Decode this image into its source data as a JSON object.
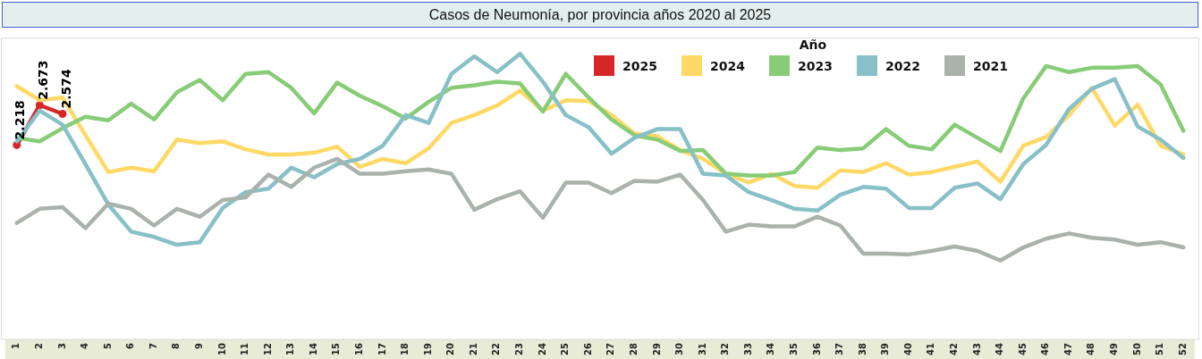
{
  "chart_data": {
    "type": "line",
    "title": "Casos de Neumonía, por provincia años 2020 al 2025",
    "legend_title": "Año",
    "legend": "top right",
    "grid": false,
    "tick_labels": "x",
    "line_style": "solid",
    "marker": "none",
    "categories": [
      "1",
      "2",
      "3",
      "4",
      "5",
      "6",
      "7",
      "8",
      "9",
      "10",
      "11",
      "12",
      "13",
      "14",
      "15",
      "16",
      "17",
      "18",
      "19",
      "20",
      "21",
      "22",
      "23",
      "24",
      "25",
      "26",
      "27",
      "28",
      "29",
      "30",
      "31",
      "32",
      "33",
      "34",
      "35",
      "36",
      "37",
      "38",
      "39",
      "40",
      "41",
      "42",
      "43",
      "44",
      "45",
      "46",
      "47",
      "48",
      "49",
      "50",
      "51",
      "52"
    ],
    "ylim": [
      0,
      3440
    ],
    "series": [
      {
        "name": "2025",
        "color": "#d62728",
        "marker": "circle",
        "values": [
          2218,
          2673,
          2574,
          null,
          null,
          null,
          null,
          null,
          null,
          null,
          null,
          null,
          null,
          null,
          null,
          null,
          null,
          null,
          null,
          null,
          null,
          null,
          null,
          null,
          null,
          null,
          null,
          null,
          null,
          null,
          null,
          null,
          null,
          null,
          null,
          null,
          null,
          null,
          null,
          null,
          null,
          null,
          null,
          null,
          null,
          null,
          null,
          null,
          null,
          null,
          null,
          null
        ],
        "value_labels": [
          "2.218",
          "2.673",
          "2.574",
          null,
          null,
          null,
          null,
          null,
          null,
          null,
          null,
          null,
          null,
          null,
          null,
          null,
          null,
          null,
          null,
          null,
          null,
          null,
          null,
          null,
          null,
          null,
          null,
          null,
          null,
          null,
          null,
          null,
          null,
          null,
          null,
          null,
          null,
          null,
          null,
          null,
          null,
          null,
          null,
          null,
          null,
          null,
          null,
          null,
          null,
          null,
          null,
          null
        ]
      },
      {
        "name": "2024",
        "color": "#ffd966",
        "values": [
          2890,
          2730,
          2760,
          2330,
          1910,
          1960,
          1920,
          2280,
          2240,
          2260,
          2170,
          2110,
          2110,
          2130,
          2200,
          1970,
          2060,
          2010,
          2180,
          2470,
          2560,
          2670,
          2840,
          2610,
          2730,
          2720,
          2560,
          2350,
          2320,
          2160,
          2060,
          1890,
          1790,
          1890,
          1750,
          1730,
          1930,
          1910,
          2010,
          1880,
          1910,
          1970,
          2030,
          1800,
          2210,
          2310,
          2560,
          2870,
          2440,
          2680,
          2210,
          2110
        ]
      },
      {
        "name": "2023",
        "color": "#88cc77",
        "values": [
          2300,
          2260,
          2410,
          2540,
          2500,
          2690,
          2510,
          2820,
          2960,
          2730,
          3030,
          3050,
          2870,
          2580,
          2930,
          2780,
          2660,
          2520,
          2710,
          2870,
          2900,
          2940,
          2920,
          2600,
          3030,
          2760,
          2510,
          2330,
          2280,
          2150,
          2160,
          1890,
          1870,
          1870,
          1910,
          2190,
          2160,
          2180,
          2400,
          2210,
          2170,
          2450,
          2300,
          2150,
          2750,
          3120,
          3050,
          3100,
          3100,
          3120,
          2910,
          2380
        ]
      },
      {
        "name": "2022",
        "color": "#88c0c8",
        "values": [
          2260,
          2610,
          2450,
          2000,
          1540,
          1230,
          1170,
          1080,
          1110,
          1500,
          1680,
          1720,
          1960,
          1850,
          2000,
          2060,
          2210,
          2560,
          2470,
          3030,
          3230,
          3050,
          3260,
          2940,
          2560,
          2420,
          2120,
          2300,
          2400,
          2400,
          1890,
          1870,
          1680,
          1590,
          1490,
          1470,
          1650,
          1740,
          1720,
          1500,
          1500,
          1730,
          1780,
          1600,
          2000,
          2220,
          2630,
          2860,
          2970,
          2430,
          2280,
          2070
        ]
      },
      {
        "name": "2021",
        "color": "#aab2ac",
        "values": [
          1330,
          1490,
          1510,
          1270,
          1550,
          1490,
          1300,
          1490,
          1400,
          1590,
          1620,
          1880,
          1740,
          1960,
          2060,
          1890,
          1890,
          1920,
          1940,
          1890,
          1480,
          1600,
          1690,
          1390,
          1790,
          1790,
          1670,
          1810,
          1800,
          1880,
          1590,
          1230,
          1310,
          1290,
          1290,
          1400,
          1300,
          980,
          980,
          970,
          1010,
          1060,
          1010,
          900,
          1050,
          1150,
          1210,
          1160,
          1140,
          1080,
          1110,
          1050
        ]
      }
    ]
  }
}
